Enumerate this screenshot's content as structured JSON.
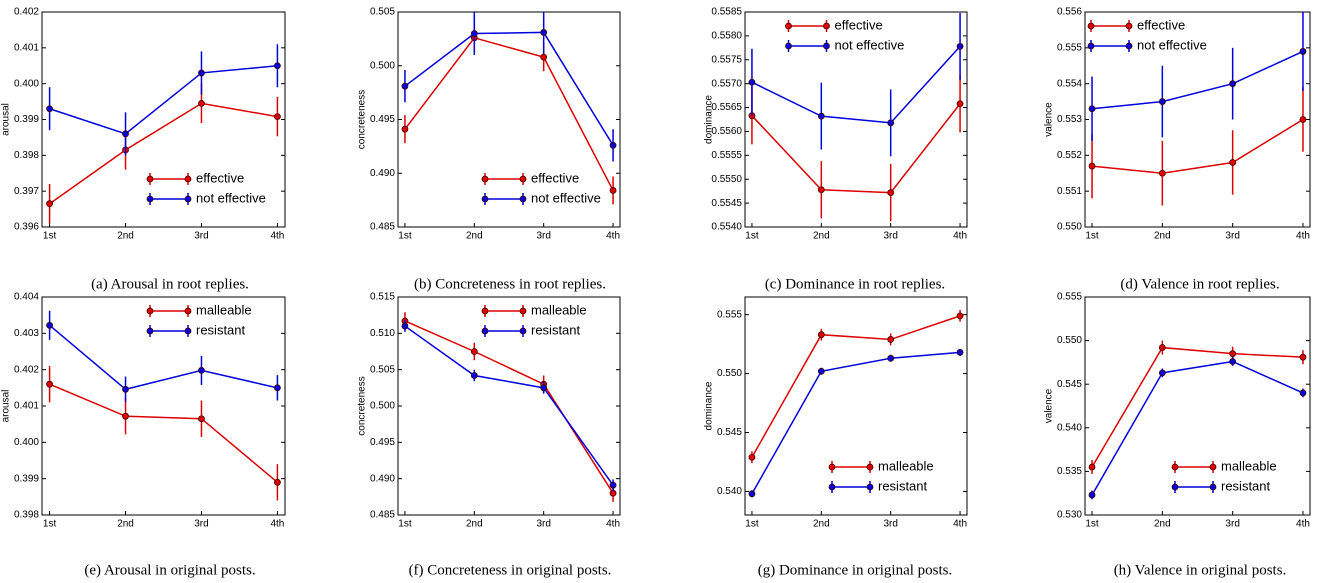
{
  "chart_data": [
    {
      "type": "line",
      "caption": "(a) Arousal in root replies.",
      "ylabel": "arousal",
      "categories": [
        "1st",
        "2nd",
        "3rd",
        "4th"
      ],
      "ylim": [
        0.396,
        0.402
      ],
      "yticks": [
        0.396,
        0.397,
        0.398,
        0.399,
        {
          "value": 0.4,
          "label": "0.400"
        },
        0.401,
        0.402
      ],
      "legend": "lower right",
      "series": [
        {
          "name": "effective",
          "color": "#dd0000",
          "values": [
            0.39665,
            0.39815,
            0.39945,
            0.39908
          ],
          "errors": [
            0.00055,
            0.00055,
            0.00055,
            0.00055
          ]
        },
        {
          "name": "not effective",
          "color": "#0000dd",
          "values": [
            0.3993,
            0.3986,
            0.4003,
            0.4005
          ],
          "errors": [
            0.0006,
            0.0006,
            0.0006,
            0.0006
          ]
        }
      ]
    },
    {
      "type": "line",
      "caption": "(b) Concreteness in root replies.",
      "ylabel": "concreteness",
      "categories": [
        "1st",
        "2nd",
        "3rd",
        "4th"
      ],
      "ylim": [
        0.485,
        0.505
      ],
      "yticks": [
        0.485,
        {
          "value": 0.49,
          "label": "0.490"
        },
        0.495,
        {
          "value": 0.5,
          "label": "0.500"
        },
        0.505
      ],
      "legend": "lower right",
      "series": [
        {
          "name": "effective",
          "color": "#dd0000",
          "values": [
            0.4941,
            0.5026,
            0.5008,
            0.4884
          ],
          "errors": [
            0.0013,
            0.0013,
            0.0013,
            0.0013
          ]
        },
        {
          "name": "not effective",
          "color": "#0000dd",
          "values": [
            0.4981,
            0.503,
            0.5031,
            0.4926
          ],
          "errors": [
            0.0015,
            0.002,
            0.002,
            0.0015
          ]
        }
      ]
    },
    {
      "type": "line",
      "caption": "(c) Dominance in root replies.",
      "ylabel": "dominance",
      "categories": [
        "1st",
        "2nd",
        "3rd",
        "4th"
      ],
      "ylim": [
        0.554,
        0.5585
      ],
      "yticks": [
        {
          "value": 0.554,
          "label": "0.5540"
        },
        0.5545,
        {
          "value": 0.555,
          "label": "0.5550"
        },
        0.5555,
        {
          "value": 0.556,
          "label": "0.5560"
        },
        0.5565,
        {
          "value": 0.557,
          "label": "0.5570"
        },
        0.5575,
        {
          "value": 0.558,
          "label": "0.5580"
        },
        0.5585
      ],
      "legend": "upper center",
      "series": [
        {
          "name": "effective",
          "color": "#dd0000",
          "values": [
            0.55633,
            0.55478,
            0.55472,
            0.55658
          ],
          "errors": [
            0.0006,
            0.0006,
            0.0006,
            0.0006
          ]
        },
        {
          "name": "not effective",
          "color": "#0000dd",
          "values": [
            0.55703,
            0.55632,
            0.55618,
            0.55778
          ],
          "errors": [
            0.0007,
            0.0007,
            0.0007,
            0.0007
          ]
        }
      ]
    },
    {
      "type": "line",
      "caption": "(d) Valence in root replies.",
      "ylabel": "valence",
      "categories": [
        "1st",
        "2nd",
        "3rd",
        "4th"
      ],
      "ylim": [
        0.55,
        0.556
      ],
      "yticks": [
        {
          "value": 0.55,
          "label": "0.550"
        },
        0.551,
        0.552,
        0.553,
        0.554,
        0.555,
        0.556
      ],
      "legend": "upper left",
      "series": [
        {
          "name": "effective",
          "color": "#dd0000",
          "values": [
            0.5517,
            0.5515,
            0.5518,
            0.553
          ],
          "errors": [
            0.0009,
            0.0009,
            0.0009,
            0.0009
          ]
        },
        {
          "name": "not effective",
          "color": "#0000dd",
          "values": [
            0.5533,
            0.5535,
            0.554,
            0.5549
          ],
          "errors": [
            0.0009,
            0.001,
            0.001,
            0.0011
          ]
        }
      ]
    },
    {
      "type": "line",
      "caption": "(e) Arousal in original posts.",
      "ylabel": "arousal",
      "categories": [
        "1st",
        "2nd",
        "3rd",
        "4th"
      ],
      "ylim": [
        0.398,
        0.404
      ],
      "yticks": [
        0.398,
        0.399,
        {
          "value": 0.4,
          "label": "0.400"
        },
        0.401,
        0.402,
        0.403,
        0.404
      ],
      "legend": "upper right",
      "series": [
        {
          "name": "malleable",
          "color": "#dd0000",
          "values": [
            0.4016,
            0.40072,
            0.40065,
            0.3989
          ],
          "errors": [
            0.0005,
            0.0005,
            0.0005,
            0.0005
          ]
        },
        {
          "name": "resistant",
          "color": "#0000dd",
          "values": [
            0.40322,
            0.40146,
            0.40198,
            0.4015
          ],
          "errors": [
            0.0004,
            0.00035,
            0.0004,
            0.00035
          ]
        }
      ]
    },
    {
      "type": "line",
      "caption": "(f) Concreteness in original posts.",
      "ylabel": "concreteness",
      "categories": [
        "1st",
        "2nd",
        "3rd",
        "4th"
      ],
      "ylim": [
        0.485,
        0.515
      ],
      "yticks": [
        0.485,
        {
          "value": 0.49,
          "label": "0.490"
        },
        0.495,
        {
          "value": 0.5,
          "label": "0.500"
        },
        0.505,
        {
          "value": 0.51,
          "label": "0.510"
        },
        0.515
      ],
      "legend": "upper right",
      "series": [
        {
          "name": "malleable",
          "color": "#dd0000",
          "values": [
            0.5117,
            0.5075,
            0.503,
            0.488
          ],
          "errors": [
            0.0012,
            0.0012,
            0.0012,
            0.0012
          ]
        },
        {
          "name": "resistant",
          "color": "#0000dd",
          "values": [
            0.511,
            0.5042,
            0.5025,
            0.4891
          ],
          "errors": [
            0.0008,
            0.0008,
            0.0008,
            0.0008
          ]
        }
      ]
    },
    {
      "type": "line",
      "caption": "(g) Dominance in original posts.",
      "ylabel": "dominance",
      "categories": [
        "1st",
        "2nd",
        "3rd",
        "4th"
      ],
      "ylim": [
        0.538,
        0.5565
      ],
      "yticks": [
        {
          "value": 0.54,
          "label": "0.540"
        },
        0.545,
        {
          "value": 0.55,
          "label": "0.550"
        },
        0.555
      ],
      "legend": "lower right",
      "series": [
        {
          "name": "malleable",
          "color": "#dd0000",
          "values": [
            0.5429,
            0.5533,
            0.5529,
            0.5549
          ],
          "errors": [
            0.0005,
            0.0005,
            0.0005,
            0.0005
          ]
        },
        {
          "name": "resistant",
          "color": "#0000dd",
          "values": [
            0.5398,
            0.5502,
            0.5513,
            0.5518
          ],
          "errors": [
            0.0003,
            0.0003,
            0.0003,
            0.0003
          ]
        }
      ]
    },
    {
      "type": "line",
      "caption": "(h) Valence in original posts.",
      "ylabel": "valence",
      "categories": [
        "1st",
        "2nd",
        "3rd",
        "4th"
      ],
      "ylim": [
        0.53,
        0.555
      ],
      "yticks": [
        {
          "value": 0.53,
          "label": "0.530"
        },
        0.535,
        {
          "value": 0.54,
          "label": "0.540"
        },
        0.545,
        {
          "value": 0.55,
          "label": "0.550"
        },
        0.555
      ],
      "legend": "lower right",
      "series": [
        {
          "name": "malleable",
          "color": "#dd0000",
          "values": [
            0.5355,
            0.5492,
            0.5485,
            0.5481
          ],
          "errors": [
            0.0008,
            0.0008,
            0.0008,
            0.0008
          ]
        },
        {
          "name": "resistant",
          "color": "#0000dd",
          "values": [
            0.5323,
            0.5463,
            0.5476,
            0.544
          ],
          "errors": [
            0.0005,
            0.0005,
            0.0005,
            0.0005
          ]
        }
      ]
    }
  ]
}
